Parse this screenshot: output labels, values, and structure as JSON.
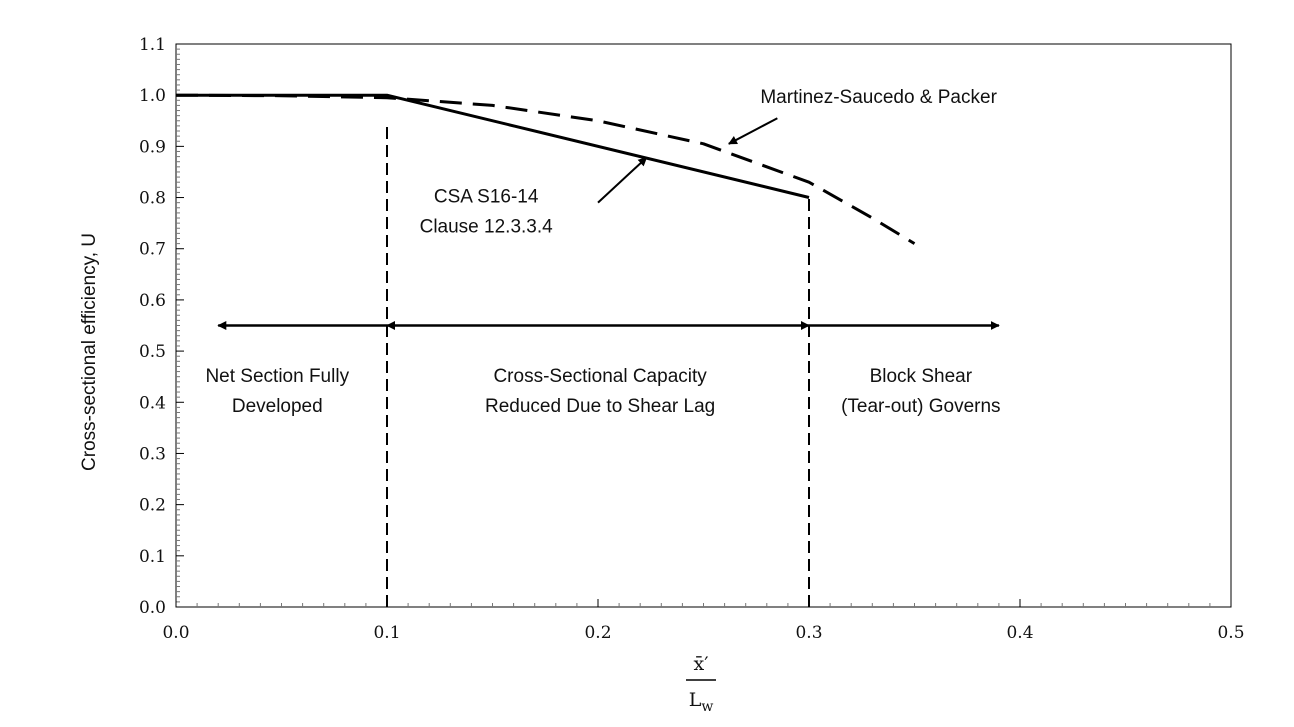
{
  "chart_data": {
    "type": "line",
    "title": "",
    "ylabel": "Cross-sectional efficiency, U",
    "xlabel_numerator": "x̄′",
    "xlabel_denominator_main": "L",
    "xlabel_denominator_sub": "w",
    "xlim": [
      0.0,
      0.5
    ],
    "ylim": [
      0.0,
      1.1
    ],
    "x_ticks": [
      0.0,
      0.1,
      0.2,
      0.3,
      0.4,
      0.5
    ],
    "x_tick_labels": [
      "0.0",
      "0.1",
      "0.2",
      "0.3",
      "0.4",
      "0.5"
    ],
    "y_ticks": [
      0.0,
      0.1,
      0.2,
      0.3,
      0.4,
      0.5,
      0.6,
      0.7,
      0.8,
      0.9,
      1.0,
      1.1
    ],
    "y_tick_labels": [
      "0.0",
      "0.1",
      "0.2",
      "0.3",
      "0.4",
      "0.5",
      "0.6",
      "0.7",
      "0.8",
      "0.9",
      "1.0",
      "1.1"
    ],
    "grid": false,
    "series": [
      {
        "style": "solid",
        "x": [
          0.0,
          0.1,
          0.11,
          0.3
        ],
        "y": [
          1.0,
          1.0,
          0.99,
          0.8
        ]
      },
      {
        "style": "dashed",
        "x": [
          0.0,
          0.05,
          0.1,
          0.15,
          0.2,
          0.25,
          0.3,
          0.33,
          0.35
        ],
        "y": [
          1.0,
          0.999,
          0.995,
          0.98,
          0.95,
          0.905,
          0.83,
          0.76,
          0.71
        ]
      }
    ],
    "reference_lines": [
      {
        "x": 0.1,
        "y_from": 0.0,
        "y_to": 0.94,
        "style": "dashed"
      },
      {
        "x": 0.3,
        "y_from": 0.0,
        "y_to": 0.8,
        "style": "dashed"
      }
    ],
    "range_arrows": [
      {
        "x_from": 0.02,
        "x_to": 0.1,
        "y": 0.55,
        "heads": "left"
      },
      {
        "x_from": 0.1,
        "x_to": 0.3,
        "y": 0.55,
        "heads": "both"
      },
      {
        "x_from": 0.3,
        "x_to": 0.39,
        "y": 0.55,
        "heads": "right"
      }
    ],
    "annotations": [
      {
        "id": "ms",
        "lines": [
          "Martinez-Saucedo & Packer"
        ],
        "text_x": 0.333,
        "text_y": 0.985,
        "anchor": "middle",
        "arrow_from": [
          0.285,
          0.955
        ],
        "arrow_to": [
          0.262,
          0.905
        ]
      },
      {
        "id": "csa",
        "lines": [
          "CSA S16-14",
          "Clause 12.3.3.4"
        ],
        "text_x": 0.147,
        "text_y": 0.79,
        "anchor": "middle",
        "arrow_from": [
          0.2,
          0.79
        ],
        "arrow_to": [
          0.223,
          0.878
        ]
      },
      {
        "id": "r1",
        "lines": [
          "Net Section Fully",
          "Developed"
        ],
        "text_x": 0.048,
        "text_y": 0.44,
        "anchor": "middle"
      },
      {
        "id": "r2",
        "lines": [
          "Cross-Sectional Capacity",
          "Reduced Due to Shear Lag"
        ],
        "text_x": 0.201,
        "text_y": 0.44,
        "anchor": "middle"
      },
      {
        "id": "r3",
        "lines": [
          "Block Shear",
          "(Tear-out) Governs"
        ],
        "text_x": 0.353,
        "text_y": 0.44,
        "anchor": "middle"
      }
    ]
  }
}
